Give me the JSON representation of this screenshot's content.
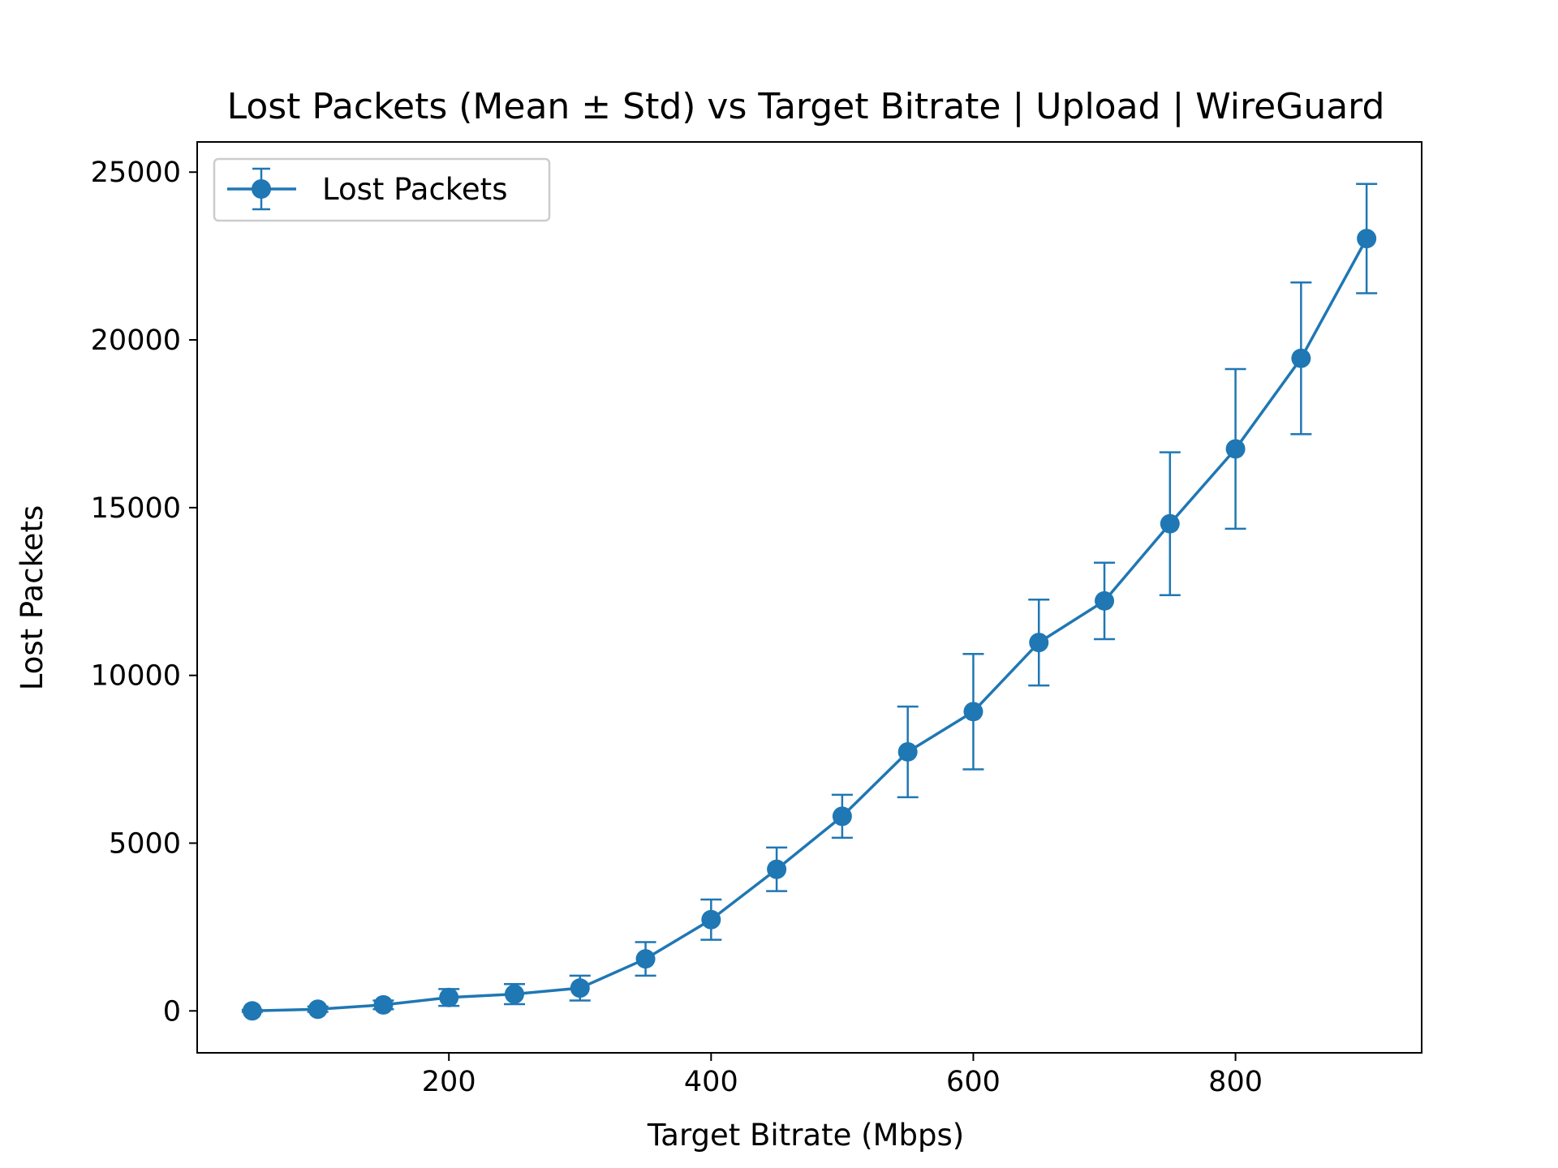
{
  "chart_data": {
    "type": "line",
    "title": "Lost Packets (Mean ± Std) vs Target Bitrate | Upload | WireGuard",
    "xlabel": "Target Bitrate (Mbps)",
    "ylabel": "Lost Packets",
    "xlim": [
      8,
      942
    ],
    "ylim": [
      -1250,
      25900
    ],
    "xticks": [
      200,
      400,
      600,
      800
    ],
    "yticks": [
      0,
      5000,
      10000,
      15000,
      20000,
      25000
    ],
    "grid": false,
    "legend_position": "top-left",
    "series": [
      {
        "name": "Lost Packets",
        "color": "#1f77b4",
        "x": [
          50,
          100,
          150,
          200,
          250,
          300,
          350,
          400,
          450,
          500,
          550,
          600,
          650,
          700,
          750,
          800,
          850,
          900
        ],
        "y": [
          0,
          50,
          180,
          400,
          500,
          680,
          1550,
          2720,
          4220,
          5800,
          7720,
          8920,
          10980,
          12220,
          14520,
          16750,
          19450,
          23020
        ],
        "yerr": [
          30,
          80,
          130,
          250,
          300,
          370,
          500,
          600,
          650,
          640,
          1350,
          1720,
          1280,
          1140,
          2130,
          2380,
          2260,
          1630
        ]
      }
    ]
  }
}
